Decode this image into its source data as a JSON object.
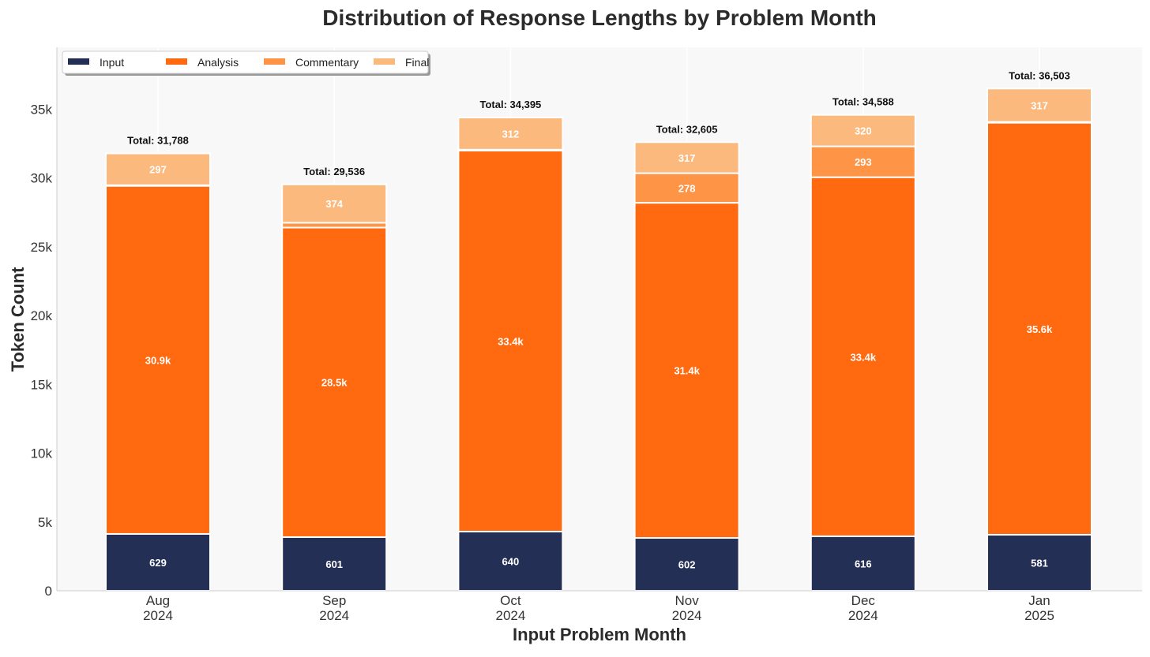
{
  "chart_data": {
    "type": "bar",
    "stacked": true,
    "title": "Distribution of Response Lengths by Problem Month",
    "xlabel": "Input Problem Month",
    "ylabel": "Token Count",
    "ylim": [
      0,
      39500
    ],
    "yticks": [
      0,
      5000,
      10000,
      15000,
      20000,
      25000,
      30000,
      35000
    ],
    "ytick_labels": [
      "0",
      "5k",
      "10k",
      "15k",
      "20k",
      "25k",
      "30k",
      "35k"
    ],
    "categories": [
      [
        "Aug",
        "2024"
      ],
      [
        "Sep",
        "2024"
      ],
      [
        "Oct",
        "2024"
      ],
      [
        "Nov",
        "2024"
      ],
      [
        "Dec",
        "2024"
      ],
      [
        "Jan",
        "2025"
      ]
    ],
    "legend_placement": "top-left",
    "series": [
      {
        "name": "Input",
        "color": "#232f55",
        "values": [
          4130,
          3900,
          4300,
          3840,
          3960,
          4070
        ],
        "labels": [
          "629",
          "601",
          "640",
          "602",
          "616",
          "581"
        ]
      },
      {
        "name": "Analysis",
        "color": "#ff6a10",
        "values": [
          25300,
          22500,
          27700,
          24360,
          26100,
          29950
        ],
        "labels": [
          "30.9k",
          "28.5k",
          "33.4k",
          "31.4k",
          "33.4k",
          "35.6k"
        ]
      },
      {
        "name": "Commentary",
        "color": "#fd9446",
        "values": [
          50,
          350,
          60,
          2150,
          2240,
          60
        ],
        "labels": [
          "",
          "",
          "",
          "278",
          "293",
          ""
        ]
      },
      {
        "name": "Final",
        "color": "#fcb97d",
        "values": [
          2308,
          2786,
          2335,
          2255,
          2288,
          2423
        ],
        "labels": [
          "297",
          "374",
          "312",
          "317",
          "320",
          "317"
        ]
      }
    ],
    "totals": [
      "Total: 31,788",
      "Total: 29,536",
      "Total: 34,395",
      "Total: 32,605",
      "Total: 34,588",
      "Total: 36,503"
    ]
  }
}
